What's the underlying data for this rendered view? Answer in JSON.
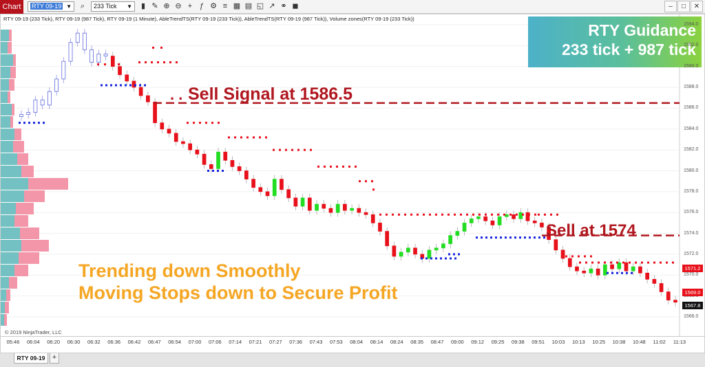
{
  "toolbar": {
    "chart_tab": "Chart",
    "instrument": "RTY 09-19",
    "interval": "233 Tick"
  },
  "chart": {
    "series_label": "RTY 09-19 (233 Tick), RTY 09-19 (987 Tick), RTY 09-19 (1 Minute), AbleTrendTS(RTY 09-19 (233 Tick)), AbleTrendTS(RTY 09-19 (987 Tick)), Volume zones(RTY 09-19 (233 Tick))",
    "copyright": "© 2019 NinjaTrader, LLC",
    "colors": {
      "up_bar": "#22dd22",
      "down_bar": "#e8101a",
      "stop_red": "#e8101a",
      "stop_blue": "#1424e0",
      "volume_pink": "#f28ba0",
      "volume_teal": "#6cc3c3"
    }
  },
  "guidance": {
    "title": "RTY Guidance",
    "subtitle": "233 tick + 987 tick"
  },
  "annotations": {
    "sell_signal": "Sell Signal at 1586.5",
    "sell_signal_dots": ". .",
    "sell_1574": "Sell at 1574",
    "trend_line1": "Trending down Smoothly",
    "trend_line2": "Moving Stops down to Secure Profit"
  },
  "price_axis": {
    "labels": [
      "1594.0",
      "1592.0",
      "1590.0",
      "1588.0",
      "1586.0",
      "1584.0",
      "1582.0",
      "1580.0",
      "1578.0",
      "1576.0",
      "1574.0",
      "1572.0",
      "1570.0",
      "1568.0",
      "1566.0"
    ],
    "marker_1": "1571.2",
    "marker_2": "1569.0",
    "marker_3": "1567.8"
  },
  "time_axis": {
    "labels": [
      "05:46",
      "06:04",
      "06:20",
      "06:30",
      "06:32",
      "06:36",
      "06:42",
      "06:47",
      "06:54",
      "07:00",
      "07:06",
      "07:14",
      "07:21",
      "07:27",
      "07:36",
      "07:43",
      "07:53",
      "08:04",
      "08:14",
      "08:24",
      "08:35",
      "08:47",
      "09:00",
      "09:12",
      "09:25",
      "09:38",
      "09:51",
      "10:03",
      "10:13",
      "10:25",
      "10:38",
      "10:48",
      "11:02",
      "11:13"
    ]
  },
  "bottom": {
    "instrument_tab": "RTY 09-19",
    "add_tab": "+"
  }
}
